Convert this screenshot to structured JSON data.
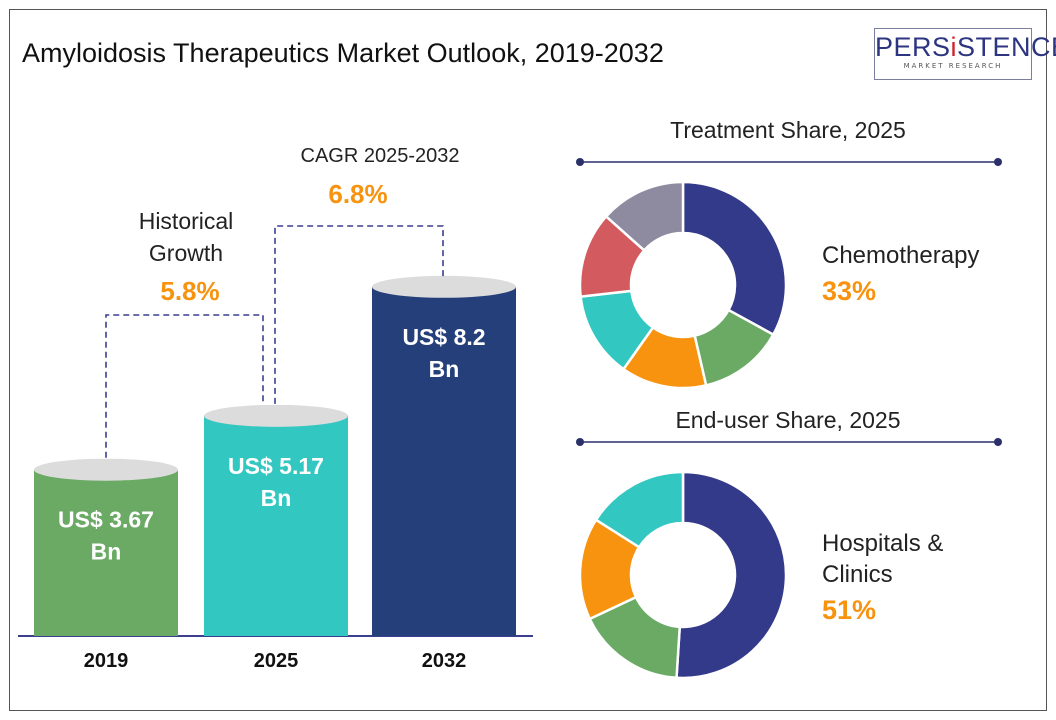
{
  "title": "Amyloidosis Therapeutics Market Outlook, 2019-2032",
  "logo": {
    "text": "PERSISTENCE",
    "subtext": "MARKET RESEARCH"
  },
  "chart_data": [
    {
      "type": "bar",
      "categories": [
        "2019",
        "2025",
        "2032"
      ],
      "values": [
        3.67,
        5.17,
        8.2
      ],
      "data_labels": [
        "US$ 3.67 Bn",
        "US$ 5.17 Bn",
        "US$ 8.2 Bn"
      ],
      "colors": [
        "#6aaa64",
        "#33c7c1",
        "#243f7a"
      ],
      "annotations": [
        {
          "label": "Historical Growth",
          "value": "5.8%"
        },
        {
          "label": "CAGR 2025-2032",
          "value": "6.8%"
        }
      ]
    },
    {
      "type": "pie",
      "title": "Treatment Share, 2025",
      "highlight": {
        "label": "Chemotherapy",
        "value": "33%"
      },
      "values": [
        33,
        13.4,
        13.4,
        13.4,
        13.4,
        13.4
      ],
      "colors": [
        "#343a8a",
        "#6aaa64",
        "#f7930f",
        "#33c7c1",
        "#d35a5e",
        "#8e8aa0"
      ]
    },
    {
      "type": "pie",
      "title": "End-user Share, 2025",
      "highlight": {
        "label": "Hospitals & Clinics",
        "value": "51%"
      },
      "values": [
        51,
        17,
        16,
        16
      ],
      "colors": [
        "#343a8a",
        "#6aaa64",
        "#f7930f",
        "#33c7c1"
      ]
    }
  ],
  "accent": "#f7930f"
}
